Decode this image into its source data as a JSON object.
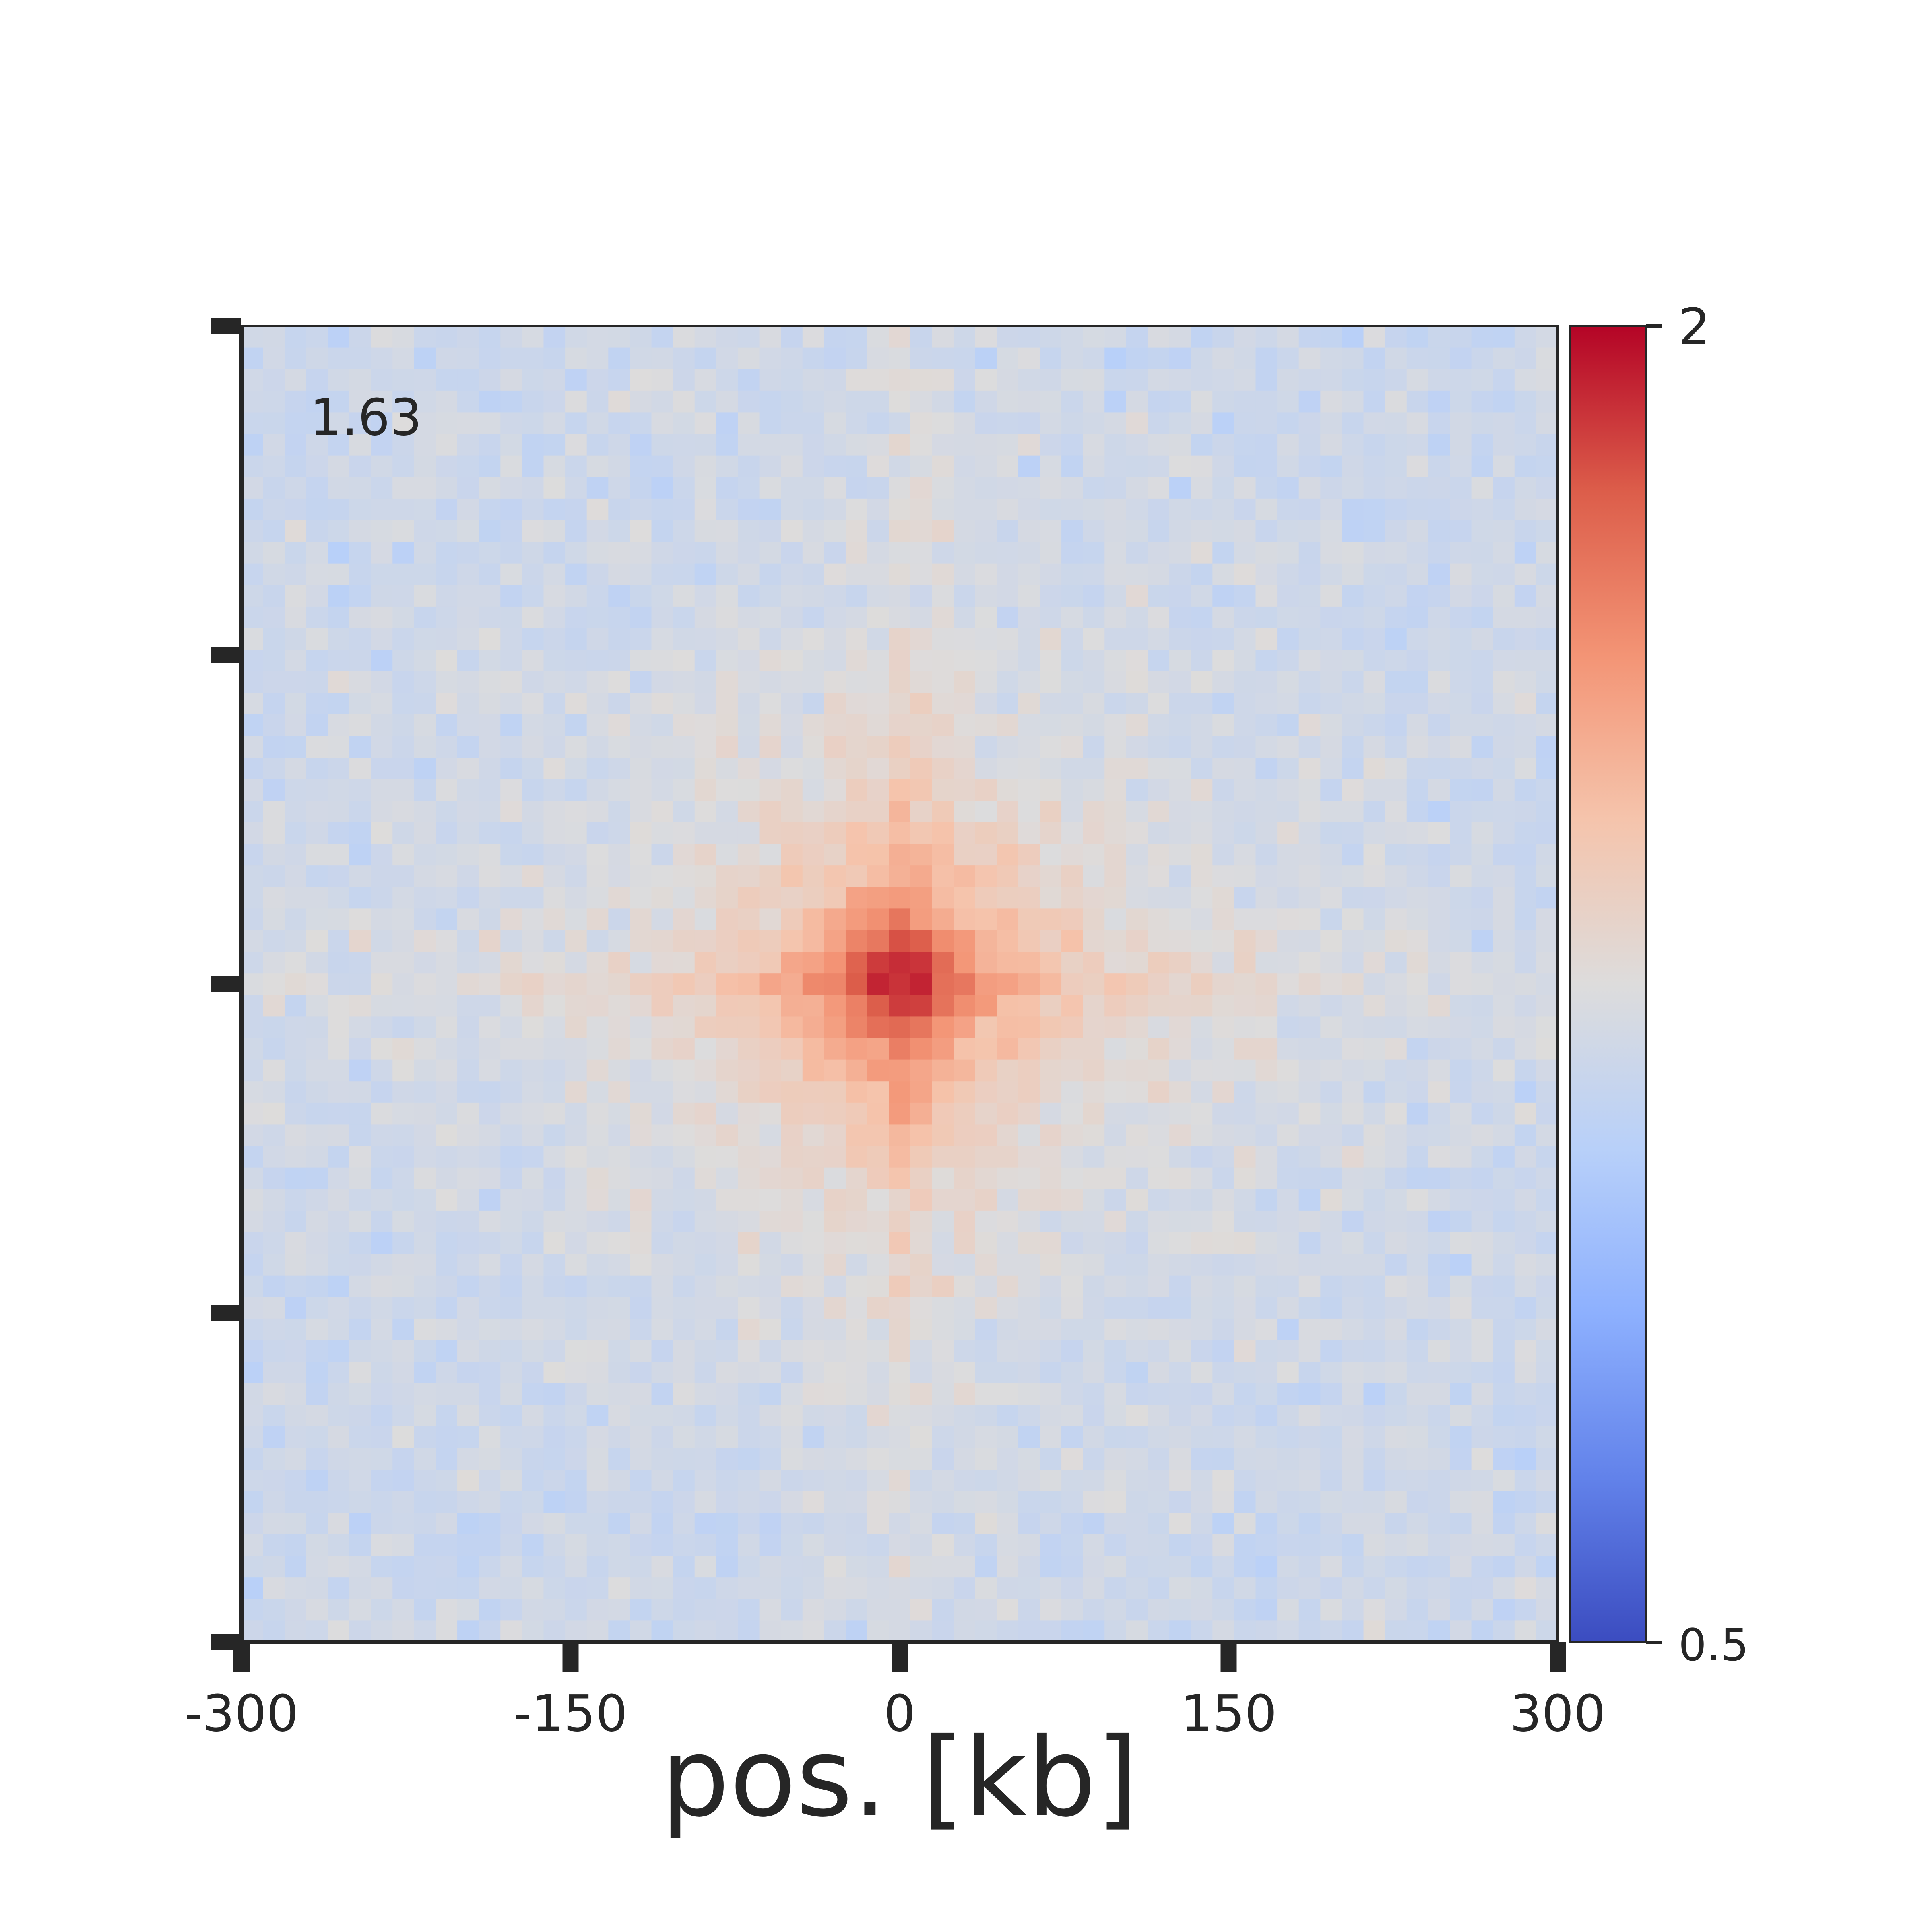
{
  "chart_data": {
    "type": "heatmap",
    "title": "",
    "xlabel": "pos. [kb]",
    "ylabel": "",
    "x_range": [
      -300,
      300
    ],
    "x_ticks": [
      -300,
      -150,
      0,
      150,
      300
    ],
    "x_tick_labels": [
      "-300",
      "-150",
      "0",
      "150",
      "300"
    ],
    "y_tick_count": 5,
    "grid_size": 61,
    "annotation": "1.63",
    "colorscale": "coolwarm",
    "color_range": [
      0.5,
      2
    ],
    "colorbar_tick_labels": [
      "2",
      "0.5"
    ],
    "center_value": 1.9,
    "background_value": 1.15,
    "pattern": "enrichment peak at center (0,0) with cross-shaped stripes along x=0 and y=0, decaying outward; noisy background",
    "colors": {
      "low": "#3b4cc0",
      "mid": "#dddddd",
      "high": "#b40426"
    }
  }
}
